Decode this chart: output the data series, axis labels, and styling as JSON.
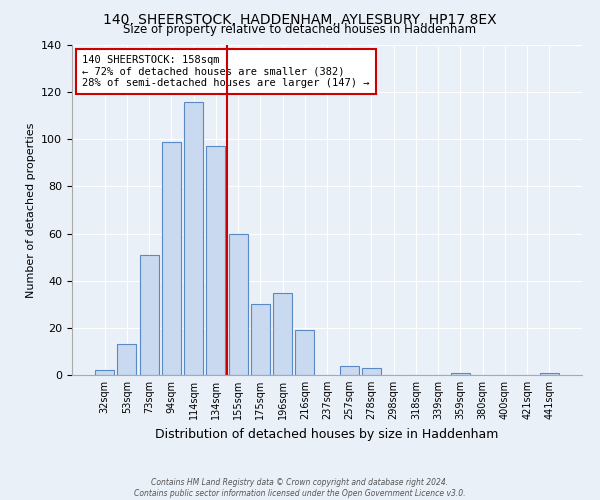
{
  "title": "140, SHEERSTOCK, HADDENHAM, AYLESBURY, HP17 8EX",
  "subtitle": "Size of property relative to detached houses in Haddenham",
  "xlabel": "Distribution of detached houses by size in Haddenham",
  "ylabel": "Number of detached properties",
  "bar_labels": [
    "32sqm",
    "53sqm",
    "73sqm",
    "94sqm",
    "114sqm",
    "134sqm",
    "155sqm",
    "175sqm",
    "196sqm",
    "216sqm",
    "237sqm",
    "257sqm",
    "278sqm",
    "298sqm",
    "318sqm",
    "339sqm",
    "359sqm",
    "380sqm",
    "400sqm",
    "421sqm",
    "441sqm"
  ],
  "bar_heights": [
    2,
    13,
    51,
    99,
    116,
    97,
    60,
    30,
    35,
    19,
    0,
    4,
    3,
    0,
    0,
    0,
    1,
    0,
    0,
    0,
    1
  ],
  "bar_color": "#c9d9ef",
  "bar_edge_color": "#5a8ac6",
  "vline_x": 5.5,
  "vline_color": "#cc0000",
  "annotation_title": "140 SHEERSTOCK: 158sqm",
  "annotation_line1": "← 72% of detached houses are smaller (382)",
  "annotation_line2": "28% of semi-detached houses are larger (147) →",
  "annotation_box_color": "#ffffff",
  "annotation_box_edge": "#cc0000",
  "ylim": [
    0,
    140
  ],
  "yticks": [
    0,
    20,
    40,
    60,
    80,
    100,
    120,
    140
  ],
  "footer1": "Contains HM Land Registry data © Crown copyright and database right 2024.",
  "footer2": "Contains public sector information licensed under the Open Government Licence v3.0.",
  "bg_color": "#eaf0f8",
  "plot_bg_color": "#eaf0f8",
  "grid_color": "#ffffff"
}
